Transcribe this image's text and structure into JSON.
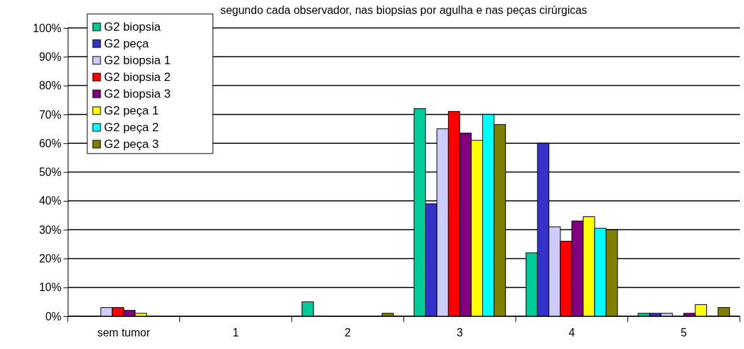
{
  "chart_data": {
    "type": "bar",
    "title": "segundo cada observador, nas biopsias por agulha e nas peças cirúrgicas",
    "categories": [
      "sem tumor",
      "1",
      "2",
      "3",
      "4",
      "5"
    ],
    "series": [
      {
        "name": "G2 biopsia",
        "color": "#00cc99",
        "values": [
          0,
          0,
          5,
          72,
          22,
          1
        ]
      },
      {
        "name": "G2 peça",
        "color": "#3333cc",
        "values": [
          0,
          0,
          0,
          39,
          60,
          1
        ]
      },
      {
        "name": "G2 biopsia 1",
        "color": "#ccccff",
        "values": [
          3,
          0,
          0,
          65,
          31,
          1
        ]
      },
      {
        "name": "G2 biopsia 2",
        "color": "#ff0000",
        "values": [
          3,
          0,
          0,
          71,
          26,
          0
        ]
      },
      {
        "name": "G2 biopsia 3",
        "color": "#800080",
        "values": [
          2,
          0,
          0,
          63.5,
          33,
          1
        ]
      },
      {
        "name": "G2 peça 1",
        "color": "#ffff00",
        "values": [
          1,
          0,
          0,
          61,
          34.5,
          4
        ]
      },
      {
        "name": "G2 peça 2",
        "color": "#00ffff",
        "values": [
          0,
          0,
          0,
          70,
          30.5,
          0
        ]
      },
      {
        "name": "G2 peça 3",
        "color": "#808000",
        "values": [
          0,
          0,
          1,
          66.5,
          30,
          3
        ]
      }
    ],
    "ylim": [
      0,
      100
    ],
    "yticks": [
      {
        "value": 0,
        "label": "0%"
      },
      {
        "value": 10,
        "label": "10%"
      },
      {
        "value": 20,
        "label": "20%"
      },
      {
        "value": 30,
        "label": "30%"
      },
      {
        "value": 40,
        "label": "40%"
      },
      {
        "value": 50,
        "label": "50%"
      },
      {
        "value": 60,
        "label": "60%"
      },
      {
        "value": 70,
        "label": "70%"
      },
      {
        "value": 80,
        "label": "80%"
      },
      {
        "value": 90,
        "label": "90%"
      },
      {
        "value": 100,
        "label": "100%"
      }
    ],
    "grid": "y",
    "legend": "top left"
  }
}
